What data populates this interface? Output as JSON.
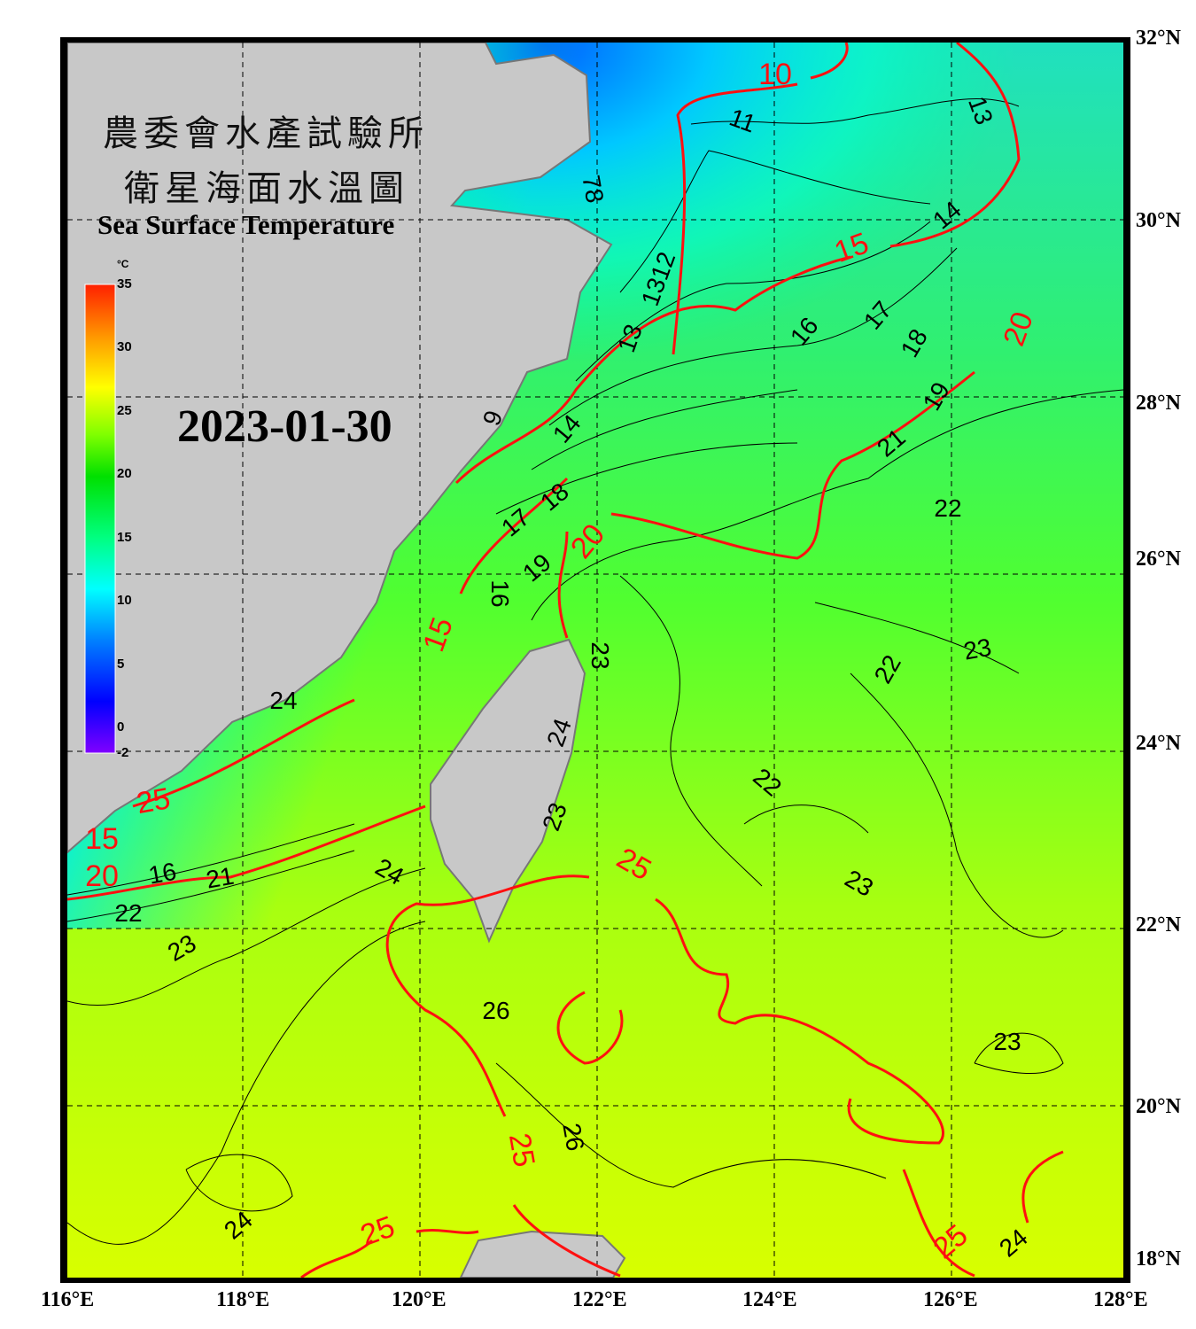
{
  "title": {
    "line1": "農委會水產試驗所",
    "line2": "衛星海面水溫圖",
    "english": "Sea Surface Temperature"
  },
  "date": "2023-01-30",
  "colorbar": {
    "unit": "°C",
    "min": -2,
    "max": 35,
    "ticks": [
      "35",
      "30",
      "25",
      "20",
      "15",
      "10",
      "5",
      "0",
      "-2"
    ],
    "colors": [
      "#8000ff",
      "#0000ff",
      "#0080ff",
      "#00ffff",
      "#00ff80",
      "#00e000",
      "#80ff00",
      "#ffff00",
      "#ffa000",
      "#ff2000"
    ]
  },
  "map": {
    "lon_range": [
      116,
      128
    ],
    "lat_range": [
      18,
      32
    ],
    "lon_labels": [
      "116°E",
      "118°E",
      "120°E",
      "122°E",
      "124°E",
      "126°E",
      "128°E"
    ],
    "lat_labels": [
      "32°N",
      "30°N",
      "28°N",
      "26°N",
      "24°N",
      "22°N",
      "20°N",
      "18°N"
    ],
    "land_color": "#c8c8c8",
    "major_contour_color": "#ff0000",
    "minor_contour_color": "#000000",
    "contour_labels": [
      "10",
      "11",
      "13",
      "14",
      "15",
      "16",
      "17",
      "18",
      "19",
      "20",
      "21",
      "22",
      "23",
      "24",
      "25",
      "26",
      "9",
      "78",
      "1312",
      "13",
      "14",
      "17",
      "18",
      "19",
      "20",
      "16",
      "15",
      "22",
      "23",
      "22",
      "23",
      "23",
      "24",
      "25",
      "15",
      "16",
      "20",
      "21",
      "22",
      "23",
      "24",
      "23",
      "24",
      "25",
      "26",
      "25",
      "25",
      "24"
    ]
  }
}
